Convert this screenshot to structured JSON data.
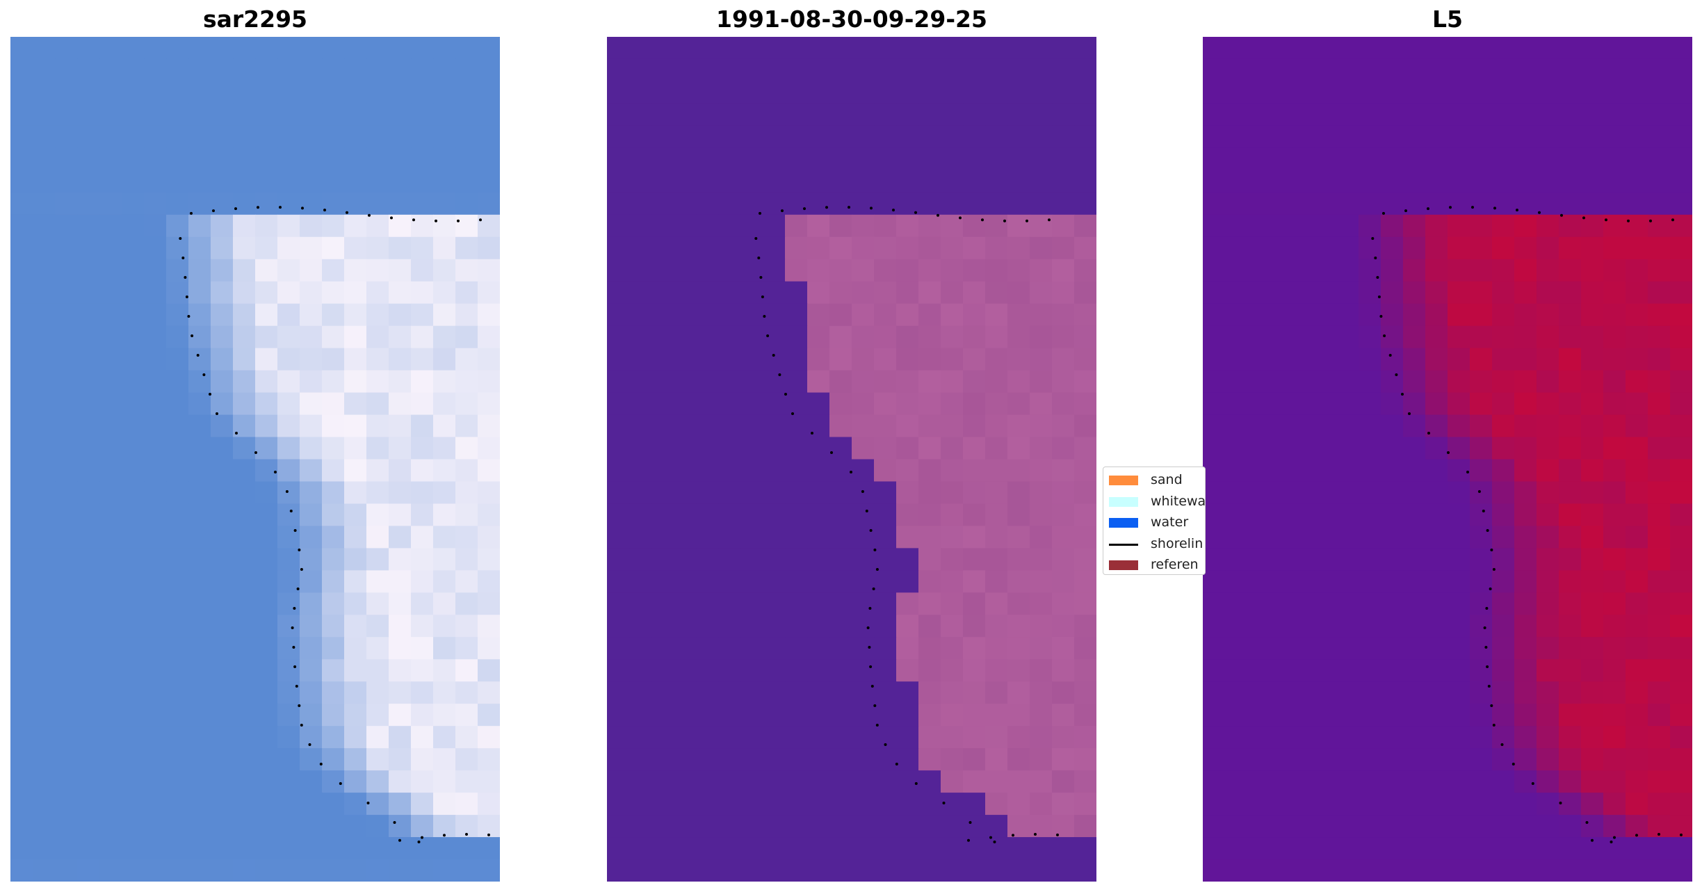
{
  "panels": [
    {
      "title": "sar2295",
      "colormap": "blue-white"
    },
    {
      "title": "1991-08-30-09-29-25",
      "colormap": "purple-pink"
    },
    {
      "title": "L5",
      "colormap": "purple-red"
    }
  ],
  "legend": {
    "items": [
      {
        "label": "sand",
        "color": "#ff8c3c",
        "kind": "patch"
      },
      {
        "label": "whitewa",
        "color": "#c8ffff",
        "kind": "patch"
      },
      {
        "label": "water",
        "color": "#0b5ff2",
        "kind": "patch"
      },
      {
        "label": "shorelin",
        "color": "#000000",
        "kind": "line"
      },
      {
        "label": "referen",
        "color": "#9a2f38",
        "kind": "patch"
      }
    ]
  },
  "colors": {
    "sar_water": "#5a8ad3",
    "sar_bright": "#f7f2fb",
    "class_water": "#542397",
    "class_sand": "#b25f9e",
    "l5_water": "#61159a",
    "l5_land": "#c2093f",
    "shoreline": "#000000"
  }
}
